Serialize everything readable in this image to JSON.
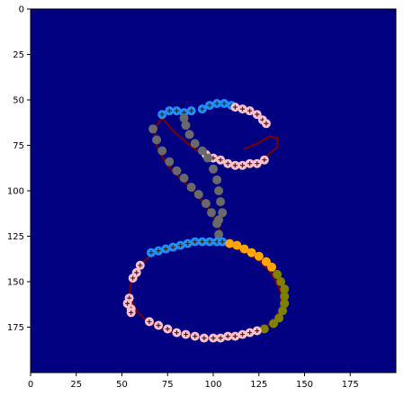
{
  "chart_data": {
    "type": "heatmap",
    "title": "",
    "xlabel": "",
    "ylabel": "",
    "xlim": [
      0,
      200
    ],
    "ylim": [
      200,
      0
    ],
    "y_axis_inverted": true,
    "grid": false,
    "x_ticks": [
      0,
      25,
      50,
      75,
      100,
      125,
      150,
      175
    ],
    "y_ticks": [
      0,
      25,
      50,
      75,
      100,
      125,
      150,
      175
    ],
    "x_tick_labels": [
      "0",
      "25",
      "50",
      "75",
      "100",
      "125",
      "150",
      "175"
    ],
    "y_tick_labels": [
      "0",
      "25",
      "50",
      "75",
      "100",
      "125",
      "150",
      "175"
    ],
    "background_color": "#000080",
    "trace": {
      "color": "#800000",
      "points": [
        [
          117,
          77
        ],
        [
          124,
          74
        ],
        [
          131,
          70
        ],
        [
          135,
          71
        ],
        [
          135,
          76
        ],
        [
          129,
          81
        ],
        [
          122,
          85
        ],
        [
          113,
          86
        ],
        [
          103,
          84
        ],
        [
          94,
          80
        ],
        [
          86,
          74
        ],
        [
          78,
          67
        ],
        [
          72,
          60
        ],
        [
          69,
          64
        ],
        [
          68,
          70
        ],
        [
          70,
          78
        ],
        [
          75,
          86
        ],
        [
          82,
          93
        ],
        [
          89,
          100
        ],
        [
          96,
          108
        ],
        [
          101,
          116
        ],
        [
          104,
          122
        ],
        [
          105,
          128
        ],
        [
          106,
          130
        ],
        [
          111,
          131
        ],
        [
          118,
          134
        ],
        [
          126,
          139
        ],
        [
          133,
          147
        ],
        [
          137,
          156
        ],
        [
          137,
          165
        ],
        [
          133,
          172
        ],
        [
          124,
          177
        ],
        [
          112,
          180
        ],
        [
          99,
          181
        ],
        [
          86,
          180
        ],
        [
          74,
          177
        ],
        [
          64,
          172
        ],
        [
          58,
          166
        ],
        [
          54,
          158
        ],
        [
          55,
          149
        ],
        [
          59,
          142
        ],
        [
          65,
          136
        ],
        [
          72,
          132
        ],
        [
          80,
          130
        ],
        [
          89,
          129
        ],
        [
          97,
          128
        ],
        [
          104,
          129
        ]
      ]
    },
    "segments": [
      {
        "color": "#1e90ff",
        "points": [
          [
            72,
            58
          ],
          [
            76,
            56
          ],
          [
            80,
            56
          ],
          [
            84,
            57
          ],
          [
            88,
            56
          ],
          [
            94,
            55
          ],
          [
            98,
            53
          ],
          [
            102,
            52
          ],
          [
            106,
            52
          ],
          [
            110,
            53
          ]
        ]
      },
      {
        "color": "#ffc0cb",
        "points": [
          [
            112,
            54
          ],
          [
            116,
            55
          ],
          [
            120,
            56
          ],
          [
            124,
            58
          ],
          [
            127,
            61
          ],
          [
            129,
            63
          ]
        ]
      },
      {
        "color": "#ffc0cb",
        "points": [
          [
            96,
            80
          ],
          [
            100,
            82
          ],
          [
            104,
            83
          ],
          [
            108,
            85
          ],
          [
            112,
            86
          ],
          [
            116,
            86
          ],
          [
            120,
            85
          ],
          [
            124,
            85
          ],
          [
            128,
            83
          ]
        ]
      },
      {
        "color": "#696969",
        "points": [
          [
            84,
            60
          ],
          [
            85,
            64
          ],
          [
            87,
            69
          ],
          [
            90,
            74
          ],
          [
            94,
            78
          ],
          [
            97,
            82
          ],
          [
            100,
            88
          ],
          [
            102,
            94
          ],
          [
            103,
            100
          ],
          [
            104,
            106
          ],
          [
            105,
            112
          ],
          [
            103,
            116
          ]
        ]
      },
      {
        "color": "#696969",
        "points": [
          [
            67,
            66
          ],
          [
            69,
            72
          ],
          [
            72,
            78
          ],
          [
            76,
            84
          ],
          [
            80,
            89
          ],
          [
            84,
            93
          ],
          [
            88,
            98
          ],
          [
            92,
            102
          ],
          [
            96,
            107
          ],
          [
            99,
            112
          ],
          [
            102,
            118
          ],
          [
            103,
            124
          ]
        ]
      },
      {
        "color": "#1e90ff",
        "points": [
          [
            66,
            134
          ],
          [
            70,
            133
          ],
          [
            74,
            132
          ],
          [
            78,
            131
          ],
          [
            82,
            130
          ],
          [
            86,
            129
          ],
          [
            90,
            128
          ],
          [
            94,
            128
          ],
          [
            98,
            128
          ],
          [
            102,
            128
          ],
          [
            105,
            128
          ]
        ]
      },
      {
        "color": "#ffa500",
        "points": [
          [
            109,
            129
          ],
          [
            113,
            130
          ],
          [
            117,
            132
          ],
          [
            121,
            134
          ],
          [
            125,
            136
          ],
          [
            129,
            139
          ],
          [
            132,
            142
          ]
        ]
      },
      {
        "color": "#808000",
        "points": [
          [
            135,
            146
          ],
          [
            137,
            150
          ],
          [
            139,
            154
          ],
          [
            139,
            158
          ],
          [
            139,
            162
          ],
          [
            138,
            166
          ],
          [
            136,
            170
          ],
          [
            133,
            173
          ],
          [
            128,
            176
          ]
        ]
      },
      {
        "color": "#ffc0cb",
        "points": [
          [
            124,
            177
          ],
          [
            120,
            178
          ],
          [
            116,
            179
          ],
          [
            112,
            180
          ],
          [
            108,
            180
          ],
          [
            104,
            181
          ],
          [
            100,
            181
          ]
        ]
      },
      {
        "color": "#ffc0cb",
        "points": [
          [
            95,
            181
          ],
          [
            90,
            180
          ],
          [
            85,
            179
          ],
          [
            80,
            178
          ],
          [
            75,
            176
          ],
          [
            70,
            174
          ],
          [
            65,
            172
          ]
        ]
      },
      {
        "color": "#ffc0cb",
        "points": [
          [
            54,
            159
          ],
          [
            53,
            162
          ],
          [
            55,
            165
          ],
          [
            55,
            167
          ]
        ]
      },
      {
        "color": "#ffc0cb",
        "points": [
          [
            56,
            148
          ],
          [
            58,
            145
          ],
          [
            60,
            141
          ]
        ]
      }
    ]
  }
}
